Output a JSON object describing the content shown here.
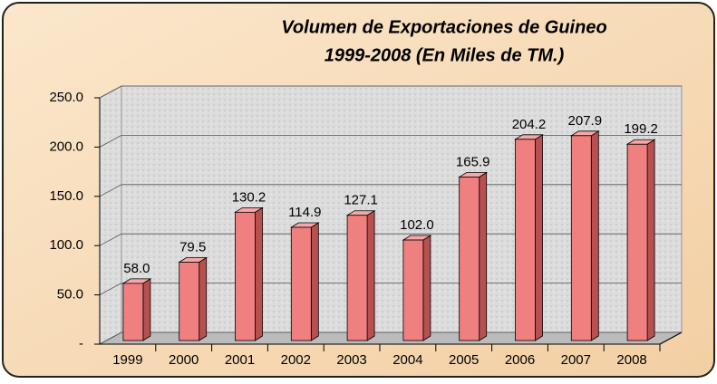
{
  "chart_data": {
    "type": "bar3d",
    "title": [
      "Volumen de Exportaciones de Guineo",
      "1999-2008 (En Miles de TM.)"
    ],
    "categories": [
      "1999",
      "2000",
      "2001",
      "2002",
      "2003",
      "2004",
      "2005",
      "2006",
      "2007",
      "2008"
    ],
    "values": [
      58.0,
      79.5,
      130.2,
      114.9,
      127.1,
      102.0,
      165.9,
      204.2,
      207.9,
      199.2
    ],
    "value_labels": [
      "58.0",
      "79.5",
      "130.2",
      "114.9",
      "127.1",
      "102.0",
      "165.9",
      "204.2",
      "207.9",
      "199.2"
    ],
    "color": "#f08080",
    "ylim": [
      0,
      250
    ],
    "yticks": [
      {
        "value": 0,
        "label": "-"
      },
      {
        "value": 50,
        "label": "50.0"
      },
      {
        "value": 100,
        "label": "100.0"
      },
      {
        "value": 150,
        "label": "150.0"
      },
      {
        "value": 200,
        "label": "200.0"
      },
      {
        "value": 250,
        "label": "250.0"
      }
    ],
    "grid": true
  }
}
